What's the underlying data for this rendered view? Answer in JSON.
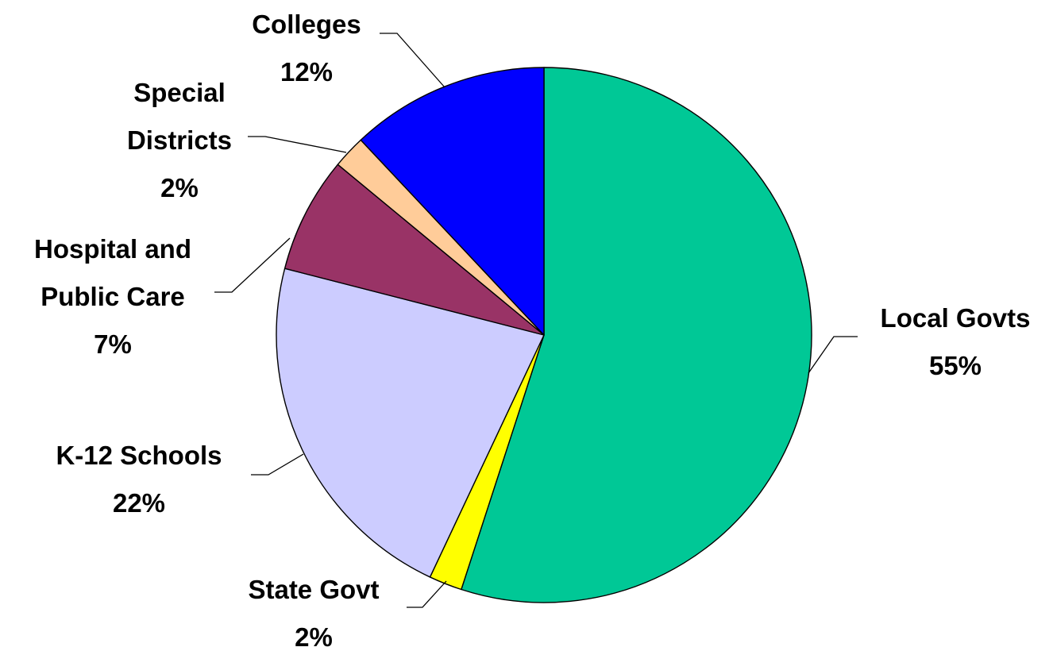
{
  "chart_data": {
    "type": "pie",
    "title": "",
    "legend": "none",
    "start": "12 o'clock",
    "direction": "clockwise",
    "slices": [
      {
        "label_lines": [
          "Local Govts"
        ],
        "value": 55,
        "value_label": "55%",
        "color": "#00C896"
      },
      {
        "label_lines": [
          "State Govt"
        ],
        "value": 2,
        "value_label": "2%",
        "color": "#FFFF00"
      },
      {
        "label_lines": [
          "K-12 Schools"
        ],
        "value": 22,
        "value_label": "22%",
        "color": "#CCCCFF"
      },
      {
        "label_lines": [
          "Hospital and",
          "Public Care"
        ],
        "value": 7,
        "value_label": "7%",
        "color": "#993366"
      },
      {
        "label_lines": [
          "Special",
          "Districts"
        ],
        "value": 2,
        "value_label": "2%",
        "color": "#FFCC99"
      },
      {
        "label_lines": [
          "Colleges"
        ],
        "value": 12,
        "value_label": "12%",
        "color": "#0000FF"
      }
    ]
  }
}
